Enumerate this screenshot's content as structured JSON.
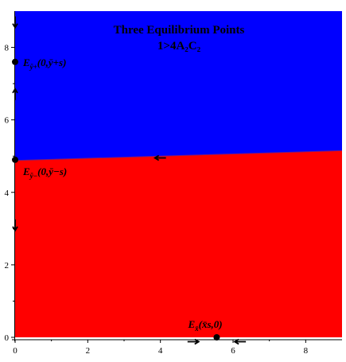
{
  "chart_data": {
    "type": "area",
    "title": "Three Equilibrium Points",
    "subtitle": "1>4A₂C₂",
    "xlim": [
      0,
      9
    ],
    "ylim": [
      0,
      9
    ],
    "xticks": [
      0,
      2,
      4,
      6,
      8
    ],
    "yticks": [
      0,
      2,
      4,
      6,
      8
    ],
    "grid": false,
    "regions": [
      {
        "name": "upper",
        "color": "#0000ff"
      },
      {
        "name": "lower",
        "color": "#ff0000"
      }
    ],
    "separatrix": {
      "x": [
        0,
        9
      ],
      "y": [
        4.88,
        5.15
      ]
    },
    "equilibrium_points": [
      {
        "id": "Eyplus",
        "x": 0,
        "y": 7.6,
        "label_main": "E",
        "label_sub": "ȳ+",
        "label_args": "(0,ȳ+s)"
      },
      {
        "id": "Eyminus",
        "x": 0,
        "y": 4.9,
        "label_main": "E",
        "label_sub": "ȳ−",
        "label_args": "(0,ȳ−s)"
      },
      {
        "id": "Ex",
        "x": 5.55,
        "y": 0,
        "label_main": "E",
        "label_sub": "x̄",
        "label_args": "(x̄s,0)"
      }
    ],
    "flow_arrows": [
      {
        "x": 0,
        "y": 8.7,
        "dir": "down"
      },
      {
        "x": 0,
        "y": 6.7,
        "dir": "up"
      },
      {
        "x": 0,
        "y": 3.1,
        "dir": "down"
      },
      {
        "x": 4.0,
        "y": 4.95,
        "dir": "left"
      },
      {
        "x": 4.9,
        "y": -0.12,
        "dir": "right"
      },
      {
        "x": 6.2,
        "y": -0.12,
        "dir": "left"
      }
    ]
  }
}
